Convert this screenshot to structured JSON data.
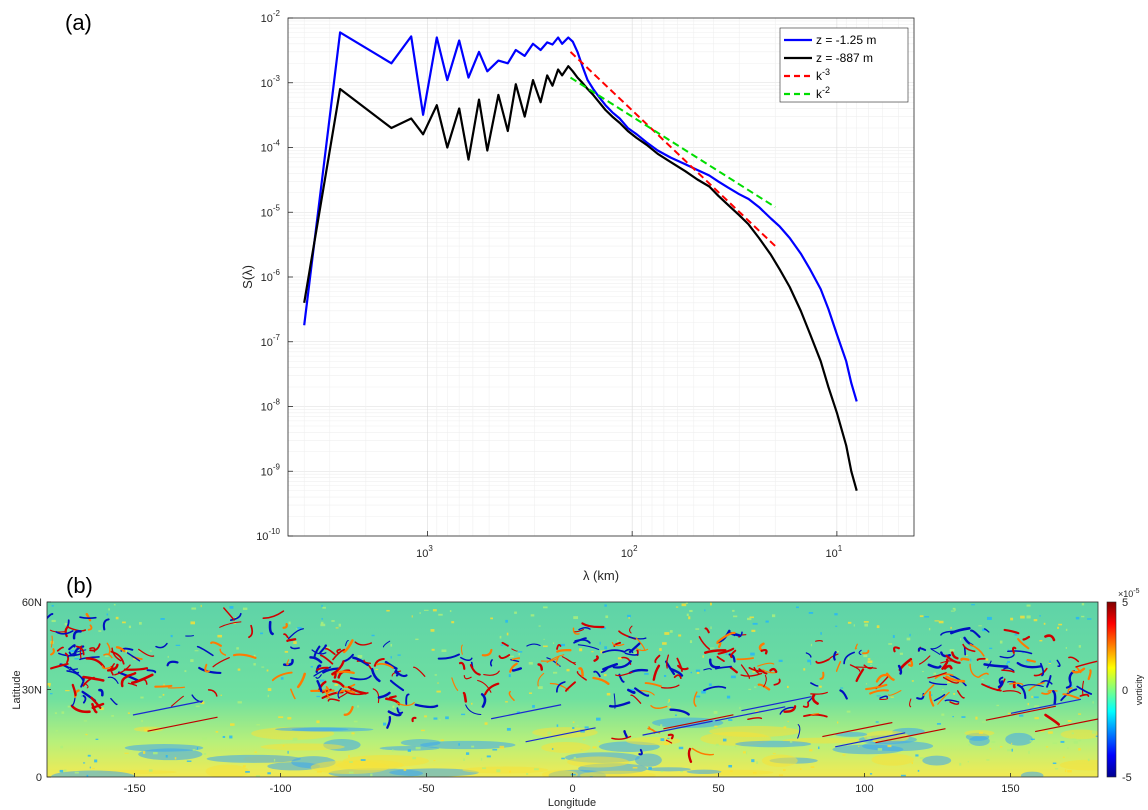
{
  "panel_a": {
    "label": "(a)",
    "ylabel": "S(λ)",
    "xlabel": "λ (km)",
    "y_ticks": [
      {
        "base": "10",
        "exp": "-2"
      },
      {
        "base": "10",
        "exp": "-3"
      },
      {
        "base": "10",
        "exp": "-4"
      },
      {
        "base": "10",
        "exp": "-5"
      },
      {
        "base": "10",
        "exp": "-6"
      },
      {
        "base": "10",
        "exp": "-7"
      },
      {
        "base": "10",
        "exp": "-8"
      },
      {
        "base": "10",
        "exp": "-9"
      },
      {
        "base": "10",
        "exp": "-10"
      }
    ],
    "x_ticks": [
      {
        "base": "10",
        "exp": "3"
      },
      {
        "base": "10",
        "exp": "2"
      },
      {
        "base": "10",
        "exp": "1"
      }
    ],
    "legend": [
      {
        "text": "z = -1.25 m",
        "color": "#0000ff",
        "dash": false
      },
      {
        "text": "z =  -887 m",
        "color": "#000000",
        "dash": false
      },
      {
        "text": "k",
        "sup": "-3",
        "color": "#ff0000",
        "dash": true
      },
      {
        "text": "k",
        "sup": "-2",
        "color": "#00dd00",
        "dash": true
      }
    ]
  },
  "panel_b": {
    "label": "(b)",
    "ylabel": "Latitude",
    "xlabel": "Longitude",
    "y_ticks": [
      "60N",
      "30N",
      "0"
    ],
    "x_ticks": [
      "-150",
      "-100",
      "-50",
      "0",
      "50",
      "100",
      "150"
    ],
    "colorbar": {
      "title": "vorticity",
      "multiplier_base": "×10",
      "multiplier_exp": "-5",
      "ticks": [
        "5",
        "0",
        "-5"
      ]
    }
  },
  "chart_data": [
    {
      "type": "line",
      "xlabel": "λ (km)",
      "ylabel": "S(λ)",
      "x_scale": "log",
      "x_reversed": true,
      "y_scale": "log",
      "xlim": [
        4800,
        4.2
      ],
      "ylim": [
        1e-10,
        0.01
      ],
      "grid": true,
      "legend_position": "top-right",
      "series": [
        {
          "name": "z = -1.25 m",
          "color": "#0000ff",
          "style": "solid",
          "x": [
            4000,
            2670,
            1500,
            1200,
            1050,
            900,
            800,
            700,
            630,
            560,
            510,
            450,
            405,
            370,
            335,
            305,
            280,
            260,
            245,
            230,
            220,
            205,
            195,
            185,
            175,
            165,
            155,
            145,
            135,
            125,
            115,
            105,
            95,
            85,
            75,
            65,
            55,
            48,
            42,
            38,
            34,
            30,
            27,
            24,
            21,
            19,
            17,
            15,
            13.5,
            12,
            11,
            10,
            9,
            8.5,
            8
          ],
          "y": [
            1.8e-07,
            0.006,
            0.002,
            0.0052,
            0.00032,
            0.005,
            0.0011,
            0.0045,
            0.0012,
            0.003,
            0.0015,
            0.0022,
            0.002,
            0.0032,
            0.0026,
            0.004,
            0.0032,
            0.0042,
            0.0039,
            0.005,
            0.004,
            0.005,
            0.0043,
            0.003,
            0.0018,
            0.0011,
            0.0008,
            0.0006,
            0.00045,
            0.00035,
            0.00028,
            0.0002,
            0.00016,
            0.00012,
            9e-05,
            7e-05,
            5.5e-05,
            4.5e-05,
            3.7e-05,
            3e-05,
            2.4e-05,
            1.9e-05,
            1.6e-05,
            1.2e-05,
            8e-06,
            6e-06,
            4e-06,
            2.3e-06,
            1.3e-06,
            6.5e-07,
            3.2e-07,
            1.3e-07,
            5e-08,
            2.3e-08,
            1.2e-08
          ]
        },
        {
          "name": "z =  -887 m",
          "color": "#000000",
          "style": "solid",
          "x": [
            4000,
            2670,
            1500,
            1200,
            1050,
            900,
            800,
            700,
            630,
            560,
            510,
            450,
            405,
            370,
            335,
            305,
            280,
            260,
            245,
            230,
            220,
            205,
            195,
            185,
            175,
            165,
            155,
            145,
            135,
            125,
            115,
            105,
            95,
            85,
            75,
            65,
            55,
            48,
            42,
            38,
            34,
            30,
            27,
            24,
            21,
            19,
            17,
            15,
            13.5,
            12,
            11,
            10,
            9,
            8.5,
            8
          ],
          "y": [
            4e-07,
            0.0008,
            0.0002,
            0.00028,
            0.00016,
            0.00045,
            0.0001,
            0.0004,
            6.5e-05,
            0.00055,
            9e-05,
            0.00065,
            0.00018,
            0.00095,
            0.0003,
            0.0011,
            0.0005,
            0.0013,
            0.0009,
            0.0016,
            0.0013,
            0.0018,
            0.0015,
            0.0012,
            0.001,
            0.0008,
            0.00065,
            0.0005,
            0.00038,
            0.0003,
            0.00024,
            0.00018,
            0.00014,
            0.00011,
            8e-05,
            6e-05,
            4.3e-05,
            3.2e-05,
            2.5e-05,
            1.8e-05,
            1.3e-05,
            9e-06,
            6.5e-06,
            4e-06,
            2.2e-06,
            1.3e-06,
            7e-07,
            3e-07,
            1.3e-07,
            5e-08,
            2e-08,
            8e-09,
            2.5e-09,
            1e-09,
            5e-10
          ]
        },
        {
          "name": "k-3",
          "color": "#ff0000",
          "style": "dashed",
          "x": [
            200,
            20
          ],
          "y": [
            0.003,
            3e-06
          ]
        },
        {
          "name": "k-2",
          "color": "#00dd00",
          "style": "dashed",
          "x": [
            200,
            20
          ],
          "y": [
            0.0012,
            1.2e-05
          ]
        }
      ]
    },
    {
      "type": "heatmap",
      "xlabel": "Longitude",
      "ylabel": "Latitude",
      "xlim": [
        -180,
        180
      ],
      "ylim": [
        0,
        60
      ],
      "colorbar_title": "vorticity",
      "colorbar_range": [
        -5e-05,
        5e-05
      ],
      "colormap": "jet"
    }
  ]
}
